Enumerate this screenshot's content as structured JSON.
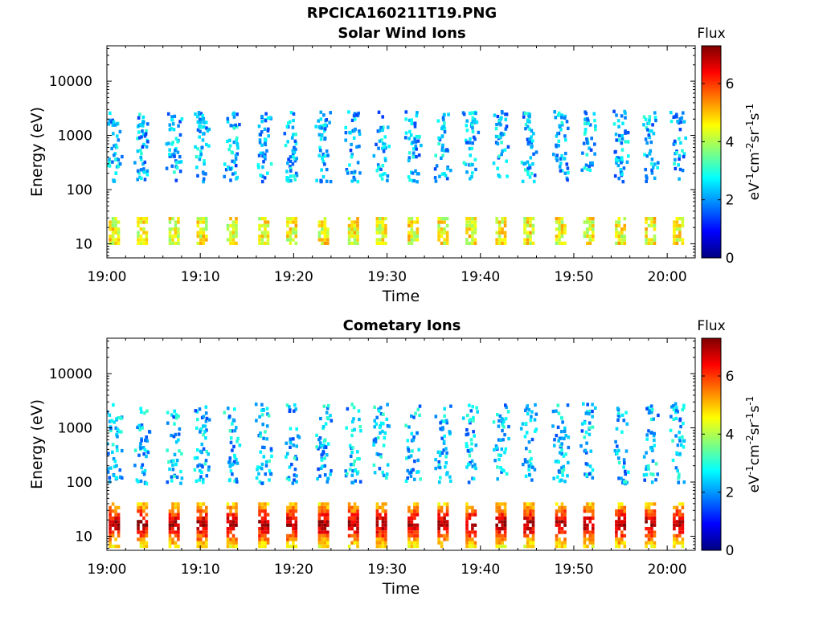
{
  "figure": {
    "filename": "RPCICA160211T19.PNG"
  },
  "chart_data": [
    {
      "type": "heatmap",
      "title": "Solar Wind Ions",
      "xlabel": "Time",
      "ylabel": "Energy (eV)",
      "x_ticks": [
        "19:00",
        "19:10",
        "19:20",
        "19:30",
        "19:40",
        "19:50",
        "20:00"
      ],
      "x_range_minutes": [
        0,
        63
      ],
      "y_scale": "log",
      "y_ticks": [
        10,
        100,
        1000,
        10000
      ],
      "y_tick_labels": [
        "10",
        "100",
        "1000",
        "10000"
      ],
      "ylim": [
        5.5,
        45000
      ],
      "colorbar": {
        "label": "Flux",
        "unit_label": "eV-1cm-2sr-1s-1",
        "range": [
          0,
          7.3
        ],
        "ticks": [
          0,
          2,
          4,
          6
        ],
        "colormap": "jet"
      },
      "scan_times_minutes": [
        0.2,
        3.2,
        6.6,
        9.6,
        12.8,
        16.2,
        19.2,
        22.6,
        25.8,
        28.8,
        32.2,
        35.4,
        38.4,
        41.6,
        44.6,
        48.0,
        51.0,
        54.4,
        57.6,
        60.6
      ],
      "low_energy_band": {
        "energy_range": [
          11,
          36
        ],
        "flux_level": 4.5
      },
      "high_energy_flux_level": 2.2,
      "high_energy_range": [
        150,
        3000
      ]
    },
    {
      "type": "heatmap",
      "title": "Cometary Ions",
      "xlabel": "Time",
      "ylabel": "Energy (eV)",
      "x_ticks": [
        "19:00",
        "19:10",
        "19:20",
        "19:30",
        "19:40",
        "19:50",
        "20:00"
      ],
      "x_range_minutes": [
        0,
        63
      ],
      "y_scale": "log",
      "y_ticks": [
        10,
        100,
        1000,
        10000
      ],
      "y_tick_labels": [
        "10",
        "100",
        "1000",
        "10000"
      ],
      "ylim": [
        5.5,
        45000
      ],
      "colorbar": {
        "label": "Flux",
        "unit_label": "eV-1cm-2sr-1s-1",
        "range": [
          0,
          7.3
        ],
        "ticks": [
          0,
          2,
          4,
          6
        ],
        "colormap": "jet"
      },
      "scan_times_minutes": [
        0.2,
        3.2,
        6.6,
        9.6,
        12.8,
        16.2,
        19.2,
        22.6,
        25.8,
        28.8,
        32.2,
        35.4,
        38.4,
        41.6,
        44.6,
        48.0,
        51.0,
        54.4,
        57.6,
        60.6
      ],
      "low_energy_band": {
        "energy_range": [
          7,
          45
        ],
        "peak_energy": 18,
        "flux_level": 6.5
      },
      "high_energy_flux_level": 2.3,
      "high_energy_range": [
        100,
        3000
      ]
    }
  ]
}
